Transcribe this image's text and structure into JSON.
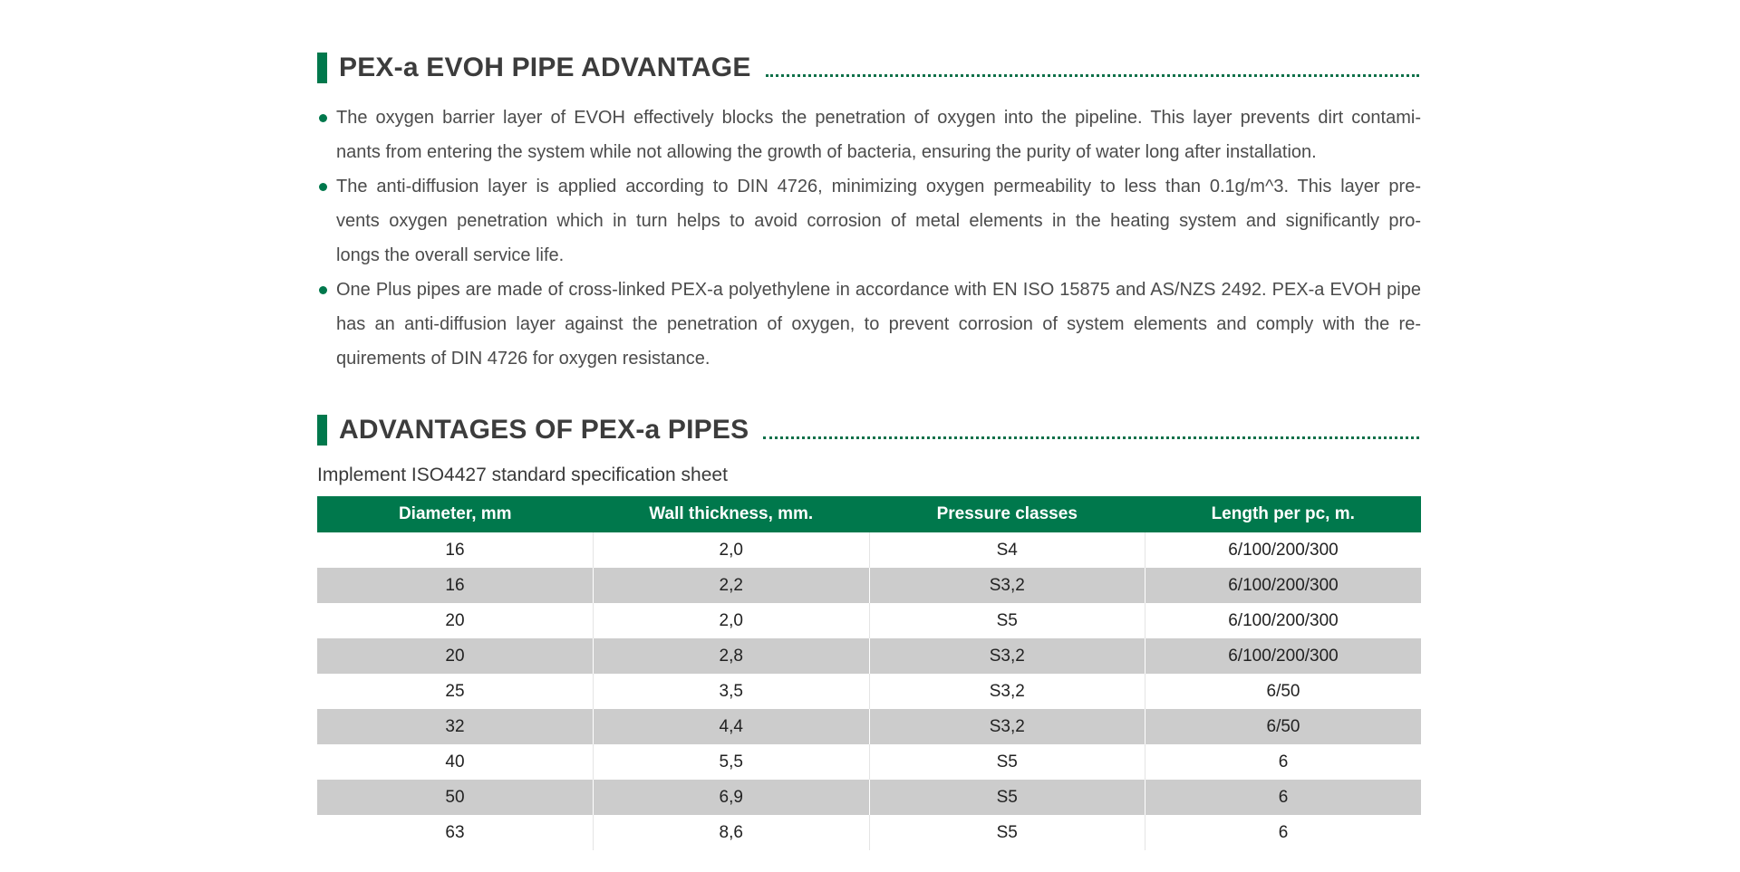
{
  "colors": {
    "accent_green": "#00784C",
    "dotted_line_green": "#0E7049",
    "row_gray": "#CCCCCC",
    "heading_text": "#3C3C3C",
    "body_text": "#4B4B4B"
  },
  "section1": {
    "title": "PEX-a EVOH PIPE ADVANTAGE"
  },
  "bullets": [
    {
      "lines": [
        "The oxygen barrier layer of EVOH effectively blocks the penetration of oxygen into the pipeline. This layer prevents dirt contami-",
        "nants from entering the system while not allowing the growth of bacteria, ensuring the purity of water long after installation."
      ]
    },
    {
      "lines": [
        "The anti-diffusion layer is applied according to DIN 4726, minimizing oxygen permeability to less than 0.1g/m^3. This layer pre-",
        "vents oxygen penetration which in turn helps to avoid corrosion of metal elements in the heating system and significantly pro-",
        "longs the overall service life."
      ]
    },
    {
      "lines": [
        "One Plus pipes are made of cross-linked PEX-a polyethylene in accordance with EN ISO 15875 and AS/NZS 2492. PEX-a EVOH pipe",
        "has an anti-diffusion layer against the penetration of oxygen, to prevent corrosion of system elements and comply with the re-",
        "quirements of DIN 4726 for oxygen resistance."
      ]
    }
  ],
  "section2": {
    "title": "ADVANTAGES OF PEX-a PIPES"
  },
  "spec_sheet": {
    "caption": "Implement ISO4427 standard specification sheet",
    "columns": [
      "Diameter, mm",
      "Wall thickness, mm.",
      "Pressure classes",
      "Length per pc, m."
    ],
    "rows": [
      [
        "16",
        "2,0",
        "S4",
        "6/100/200/300"
      ],
      [
        "16",
        "2,2",
        "S3,2",
        "6/100/200/300"
      ],
      [
        "20",
        "2,0",
        "S5",
        "6/100/200/300"
      ],
      [
        "20",
        "2,8",
        "S3,2",
        "6/100/200/300"
      ],
      [
        "25",
        "3,5",
        "S3,2",
        "6/50"
      ],
      [
        "32",
        "4,4",
        "S3,2",
        "6/50"
      ],
      [
        "40",
        "5,5",
        "S5",
        "6"
      ],
      [
        "50",
        "6,9",
        "S5",
        "6"
      ],
      [
        "63",
        "8,6",
        "S5",
        "6"
      ]
    ]
  }
}
